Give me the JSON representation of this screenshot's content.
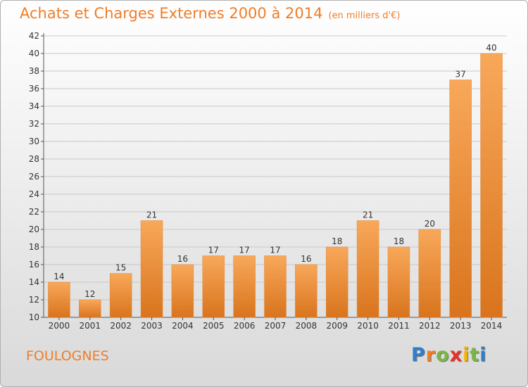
{
  "title": "Achats et Charges Externes 2000 à 2014",
  "unit": "(en milliers d'€)",
  "commune": "FOULOGNES",
  "logo": {
    "letters": [
      "P",
      "r",
      "o",
      "x",
      "i",
      "t",
      "i"
    ],
    "colors": [
      "#2e7fc9",
      "#f07d28",
      "#7ab648",
      "#e6332a",
      "#f4b400",
      "#7ab648",
      "#2e7fc9"
    ]
  },
  "colors": {
    "accent": "#f07d28",
    "bar_top": "#f8a85a",
    "bar_bottom": "#d9741d"
  },
  "chart_data": {
    "type": "bar",
    "categories": [
      "2000",
      "2001",
      "2002",
      "2003",
      "2004",
      "2005",
      "2006",
      "2007",
      "2008",
      "2009",
      "2010",
      "2011",
      "2012",
      "2013",
      "2014"
    ],
    "values": [
      14,
      12,
      15,
      21,
      16,
      17,
      17,
      17,
      16,
      18,
      21,
      18,
      20,
      37,
      40
    ],
    "ylim": [
      10,
      42
    ],
    "yticks": [
      10,
      12,
      14,
      16,
      18,
      20,
      22,
      24,
      26,
      28,
      30,
      32,
      34,
      36,
      38,
      40,
      42
    ],
    "grid": true,
    "legend": "none"
  }
}
